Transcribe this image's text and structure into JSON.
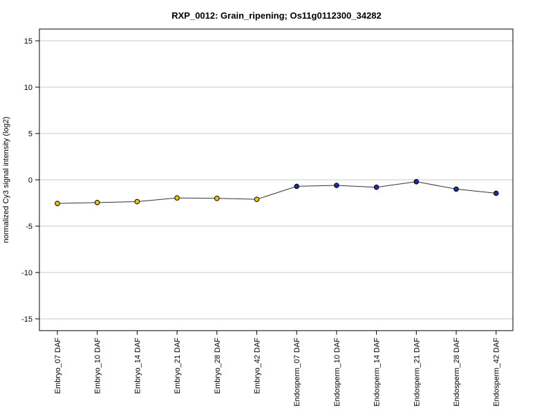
{
  "chart_data": {
    "type": "line",
    "title": "RXP_0012: Grain_ripening; Os11g0112300_34282",
    "xlabel": "",
    "ylabel": "normalized Cy3 signal intensity (log2)",
    "ylim": [
      -16.2,
      16.2
    ],
    "yticks": [
      -15,
      -10,
      -5,
      0,
      5,
      10,
      15
    ],
    "grid": true,
    "categories": [
      "Embryo_07 DAF",
      "Embryo_10 DAF",
      "Embryo_14 DAF",
      "Embryo_21 DAF",
      "Embryo_28 DAF",
      "Embryo_42 DAF",
      "Endosperm_07 DAF",
      "Endosperm_10 DAF",
      "Endosperm_14 DAF",
      "Endosperm_21 DAF",
      "Endosperm_28 DAF",
      "Endosperm_42 DAF"
    ],
    "series": [
      {
        "values": [
          -2.55,
          -2.45,
          -2.35,
          -1.95,
          -2.0,
          -2.1,
          -0.7,
          -0.6,
          -0.8,
          -0.2,
          -1.0,
          -1.45
        ],
        "errors": [
          0.1,
          0.2,
          0.15,
          0.1,
          0.1,
          0.1,
          0.1,
          0.1,
          0.1,
          0.3,
          0.1,
          0.1
        ],
        "point_colors": [
          "#f5c400",
          "#f5c400",
          "#f5c400",
          "#f5c400",
          "#f5c400",
          "#f5c400",
          "#1a2fa0",
          "#1a2fa0",
          "#1a2fa0",
          "#1a2fa0",
          "#1a2fa0",
          "#1a2fa0"
        ]
      }
    ],
    "colors": {
      "embryo": "#f5c400",
      "endosperm": "#1a2fa0",
      "line": "#333333",
      "grid": "#c8c8c8"
    }
  }
}
